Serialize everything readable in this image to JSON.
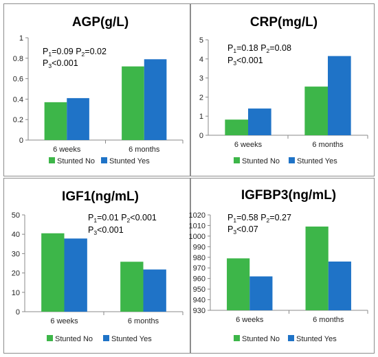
{
  "colors": {
    "no": "#3db649",
    "yes": "#1f73c7",
    "axis": "#888888"
  },
  "chart_data": [
    {
      "type": "bar",
      "title": "AGP(g/L)",
      "categories": [
        "6 weeks",
        "6 months"
      ],
      "series": [
        {
          "name": "Stunted No",
          "values": [
            0.37,
            0.72
          ]
        },
        {
          "name": "Stunted Yes",
          "values": [
            0.41,
            0.79
          ]
        }
      ],
      "ylim": [
        0,
        1
      ],
      "yticks": [
        0,
        0.2,
        0.4,
        0.6,
        0.8,
        1
      ],
      "yticklabels": [
        "0",
        "0.2",
        "0.4",
        "0.6",
        "0.8",
        "1"
      ],
      "annotation": {
        "p1": "0.09",
        "p2": "0.02",
        "p3": "<0.001"
      },
      "legend": "bottom"
    },
    {
      "type": "bar",
      "title": "CRP(mg/L)",
      "categories": [
        "6 weeks",
        "6 months"
      ],
      "series": [
        {
          "name": "Stunted No",
          "values": [
            0.82,
            2.55
          ]
        },
        {
          "name": "Stunted Yes",
          "values": [
            1.4,
            4.15
          ]
        }
      ],
      "ylim": [
        0,
        5
      ],
      "yticks": [
        0,
        1,
        2,
        3,
        4,
        5
      ],
      "yticklabels": [
        "0",
        "1",
        "2",
        "3",
        "4",
        "5"
      ],
      "annotation": {
        "p1": "0.18",
        "p2": "0.08",
        "p3": "<0.001"
      },
      "legend": "bottom"
    },
    {
      "type": "bar",
      "title": "IGF1(ng/mL)",
      "categories": [
        "6 weeks",
        "6 months"
      ],
      "series": [
        {
          "name": "Stunted No",
          "values": [
            40.5,
            25.8
          ]
        },
        {
          "name": "Stunted Yes",
          "values": [
            37.8,
            21.8
          ]
        }
      ],
      "ylim": [
        0,
        50
      ],
      "yticks": [
        0,
        10,
        20,
        30,
        40,
        50
      ],
      "yticklabels": [
        "0",
        "10",
        "20",
        "30",
        "40",
        "50"
      ],
      "annotation": {
        "p1": "0.01",
        "p2": "<0.001",
        "p3": "<0.001"
      },
      "legend": "bottom"
    },
    {
      "type": "bar",
      "title": "IGFBP3(ng/mL)",
      "categories": [
        "6 weeks",
        "6 months"
      ],
      "series": [
        {
          "name": "Stunted No",
          "values": [
            979,
            1009
          ]
        },
        {
          "name": "Stunted Yes",
          "values": [
            962,
            976
          ]
        }
      ],
      "ylim": [
        930,
        1020
      ],
      "yticks": [
        930,
        940,
        950,
        960,
        970,
        980,
        990,
        1000,
        1010,
        1020
      ],
      "yticklabels": [
        "930",
        "940",
        "950",
        "960",
        "970",
        "980",
        "990",
        "1000",
        "1010",
        "1020"
      ],
      "annotation": {
        "p1": "0.58",
        "p2": "0.27",
        "p3": "<0.07"
      },
      "legend": "bottom"
    }
  ]
}
